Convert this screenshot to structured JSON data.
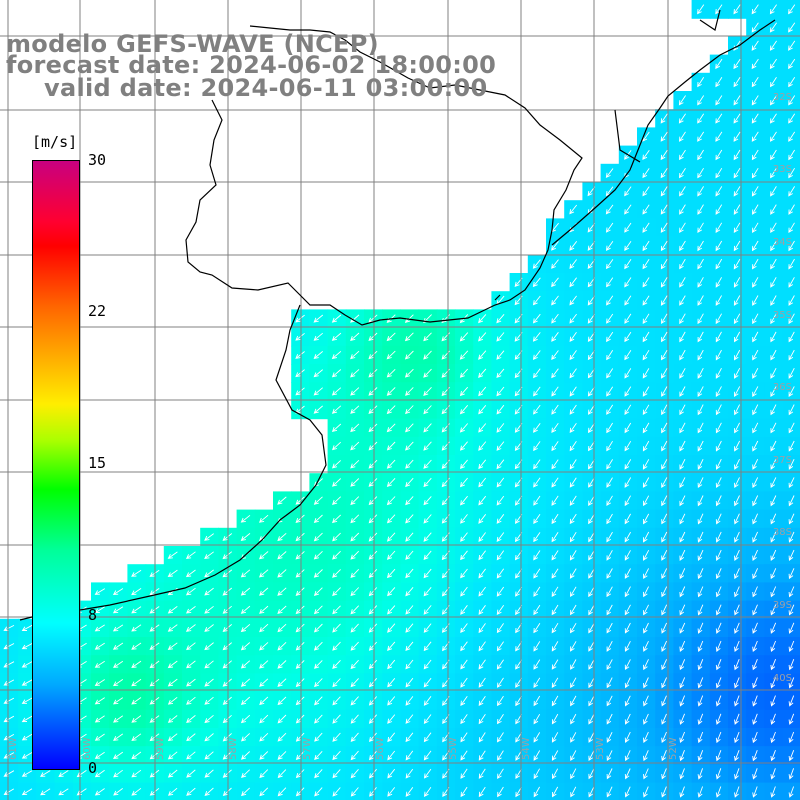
{
  "title": {
    "line1": "modelo GEFS-WAVE (NCEP)",
    "line2": "forecast date: 2024-06-02 18:00:00",
    "line3": "valid date: 2024-06-11 03:00:00"
  },
  "colorbar": {
    "units": "[m/s]",
    "ticks": [
      "30",
      "22",
      "15",
      "8",
      "0"
    ],
    "tick_values": [
      30,
      22,
      15,
      8,
      0
    ],
    "range": [
      0,
      30
    ],
    "colors_top_to_bottom": [
      "#c80080",
      "#ff0000",
      "#ff6600",
      "#ffee00",
      "#00ff00",
      "#00ffff",
      "#0055ff",
      "#0000ff"
    ]
  },
  "map": {
    "variable": "wind speed and direction",
    "lat_labels": [
      "32S",
      "33S",
      "34S",
      "35S",
      "36S",
      "37S",
      "38S",
      "39S",
      "40S"
    ],
    "lon_labels": [
      "61W",
      "60W",
      "59W",
      "58W",
      "57W",
      "56W",
      "55W",
      "54W",
      "53W",
      "52W"
    ],
    "land_color": "#ffffff",
    "grid_color": "#808080",
    "coast_color": "#000000"
  }
}
